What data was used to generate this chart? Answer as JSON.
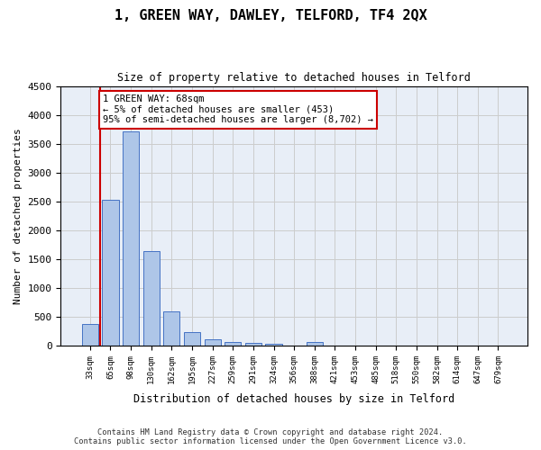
{
  "title": "1, GREEN WAY, DAWLEY, TELFORD, TF4 2QX",
  "subtitle": "Size of property relative to detached houses in Telford",
  "xlabel": "Distribution of detached houses by size in Telford",
  "ylabel": "Number of detached properties",
  "bar_values": [
    370,
    2520,
    3720,
    1630,
    590,
    230,
    110,
    65,
    40,
    35,
    0,
    65,
    0,
    0,
    0,
    0,
    0,
    0,
    0,
    0,
    0
  ],
  "bar_labels": [
    "33sqm",
    "65sqm",
    "98sqm",
    "130sqm",
    "162sqm",
    "195sqm",
    "227sqm",
    "259sqm",
    "291sqm",
    "324sqm",
    "356sqm",
    "388sqm",
    "421sqm",
    "453sqm",
    "485sqm",
    "518sqm",
    "550sqm",
    "582sqm",
    "614sqm",
    "647sqm",
    "679sqm"
  ],
  "bar_color": "#aec6e8",
  "bar_edge_color": "#4472c4",
  "ylim": [
    0,
    4500
  ],
  "yticks": [
    0,
    500,
    1000,
    1500,
    2000,
    2500,
    3000,
    3500,
    4000,
    4500
  ],
  "annotation_text": "1 GREEN WAY: 68sqm\n← 5% of detached houses are smaller (453)\n95% of semi-detached houses are larger (8,702) →",
  "annotation_box_color": "#ffffff",
  "annotation_box_edge": "#cc0000",
  "property_line_color": "#cc0000",
  "background_color": "#ffffff",
  "ax_background_color": "#e8eef7",
  "grid_color": "#cccccc",
  "footer_text": "Contains HM Land Registry data © Crown copyright and database right 2024.\nContains public sector information licensed under the Open Government Licence v3.0."
}
